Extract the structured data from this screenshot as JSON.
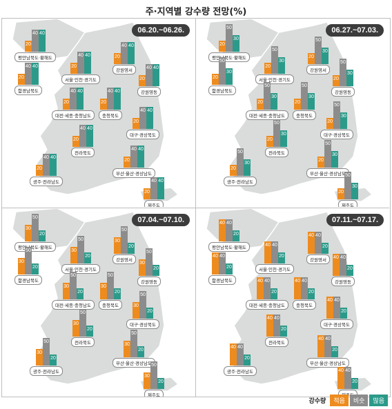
{
  "title": "주·지역별 강수량 전망(%)",
  "legend": {
    "title": "강수량",
    "items": [
      {
        "label": "적음",
        "color": "#ee8b1e"
      },
      {
        "label": "비슷",
        "color": "#8c8c8c"
      },
      {
        "label": "많음",
        "color": "#2c9a8a"
      }
    ]
  },
  "region_names": [
    "평안남북도·황해도",
    "함경남북도",
    "서울·인천·경기도",
    "강원영서",
    "강원영동",
    "충청북도",
    "대전·세종·충청남도",
    "대구·경상북도",
    "전라북도",
    "부산·울산·경상남도",
    "광주·전라남도",
    "제주도"
  ],
  "panels": [
    {
      "date": "06.20.~06.26.",
      "values": [
        [
          20,
          40,
          40
        ],
        [
          20,
          40,
          40
        ],
        [
          20,
          40,
          40
        ],
        [
          20,
          40,
          40
        ],
        [
          20,
          40,
          40
        ],
        [
          20,
          40,
          40
        ],
        [
          20,
          40,
          40
        ],
        [
          20,
          40,
          40
        ],
        [
          20,
          40,
          40
        ],
        [
          20,
          40,
          40
        ],
        [
          20,
          40,
          40
        ],
        [
          20,
          40,
          40
        ]
      ]
    },
    {
      "date": "06.27.~07.03.",
      "values": [
        [
          20,
          50,
          30
        ],
        [
          20,
          50,
          30
        ],
        [
          20,
          50,
          30
        ],
        [
          20,
          50,
          30
        ],
        [
          20,
          50,
          30
        ],
        [
          20,
          50,
          30
        ],
        [
          20,
          50,
          30
        ],
        [
          20,
          50,
          30
        ],
        [
          20,
          50,
          30
        ],
        [
          20,
          50,
          30
        ],
        [
          20,
          50,
          30
        ],
        [
          20,
          50,
          30
        ]
      ]
    },
    {
      "date": "07.04.~07.10.",
      "values": [
        [
          30,
          50,
          20
        ],
        [
          30,
          50,
          20
        ],
        [
          30,
          50,
          20
        ],
        [
          30,
          50,
          20
        ],
        [
          30,
          50,
          20
        ],
        [
          30,
          50,
          20
        ],
        [
          30,
          50,
          20
        ],
        [
          30,
          50,
          20
        ],
        [
          30,
          50,
          20
        ],
        [
          30,
          50,
          20
        ],
        [
          30,
          50,
          20
        ],
        [
          30,
          50,
          20
        ]
      ]
    },
    {
      "date": "07.11.~07.17.",
      "values": [
        [
          40,
          40,
          20
        ],
        [
          40,
          40,
          20
        ],
        [
          40,
          40,
          20
        ],
        [
          40,
          40,
          20
        ],
        [
          40,
          40,
          20
        ],
        [
          40,
          40,
          20
        ],
        [
          40,
          40,
          20
        ],
        [
          40,
          40,
          20
        ],
        [
          40,
          40,
          20
        ],
        [
          40,
          40,
          20
        ],
        [
          40,
          40,
          20
        ],
        [
          40,
          40,
          20
        ]
      ]
    }
  ]
}
